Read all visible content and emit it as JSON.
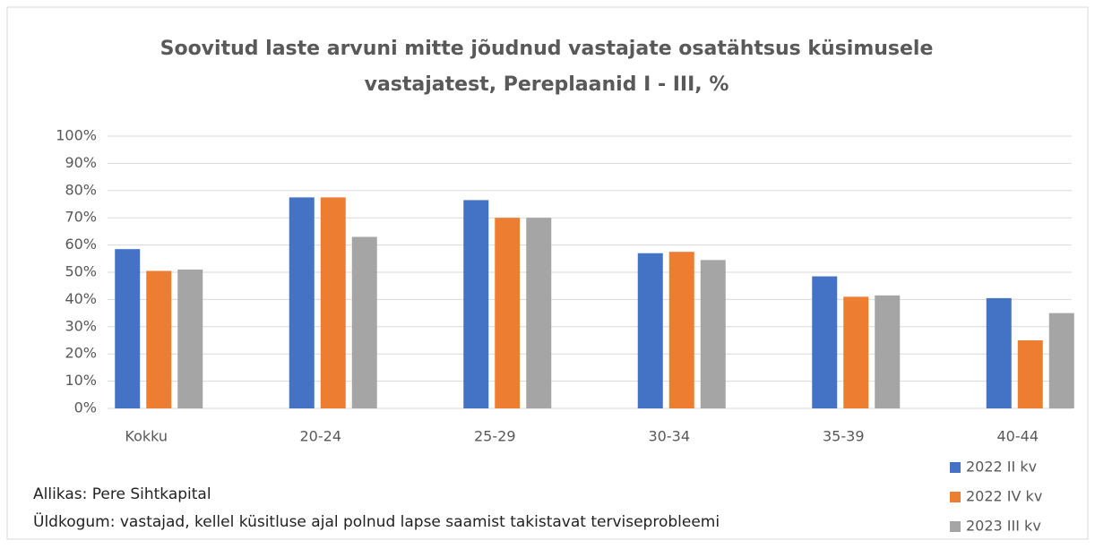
{
  "chart_data": {
    "type": "bar",
    "title": [
      "Soovitud laste arvuni mitte jõudnud vastajate osatähtsus küsimusele",
      "vastajatest, Pereplaanid I - III, %"
    ],
    "categories": [
      "Kokku",
      "20-24",
      "25-29",
      "30-34",
      "35-39",
      "40-44"
    ],
    "series": [
      {
        "name": "2022 II kv",
        "color": "#4472c4",
        "values": [
          58.5,
          77.5,
          76.5,
          57,
          48.5,
          40.5
        ]
      },
      {
        "name": "2022 IV kv",
        "color": "#ed7d31",
        "values": [
          50.5,
          77.5,
          70,
          57.5,
          41,
          25
        ]
      },
      {
        "name": "2023 III kv",
        "color": "#a5a5a5",
        "values": [
          51,
          63,
          70,
          54.5,
          41.5,
          35
        ]
      }
    ],
    "ylim": [
      0,
      100
    ],
    "yticks": [
      {
        "value": 0,
        "label": "0%"
      },
      {
        "value": 10,
        "label": "10%"
      },
      {
        "value": 20,
        "label": "20%"
      },
      {
        "value": 30,
        "label": "30%"
      },
      {
        "value": 40,
        "label": "40%"
      },
      {
        "value": 50,
        "label": "50%"
      },
      {
        "value": 60,
        "label": "60%"
      },
      {
        "value": 70,
        "label": "70%"
      },
      {
        "value": 80,
        "label": "80%"
      },
      {
        "value": 90,
        "label": "90%"
      },
      {
        "value": 100,
        "label": "100%"
      }
    ],
    "grid": true,
    "legend": "bottom-right",
    "source": "Allikas: Pere Sihtkapital",
    "population": "Üldkogum: vastajad, kellel küsitluse ajal polnud lapse saamist takistavat terviseprobleemi"
  }
}
